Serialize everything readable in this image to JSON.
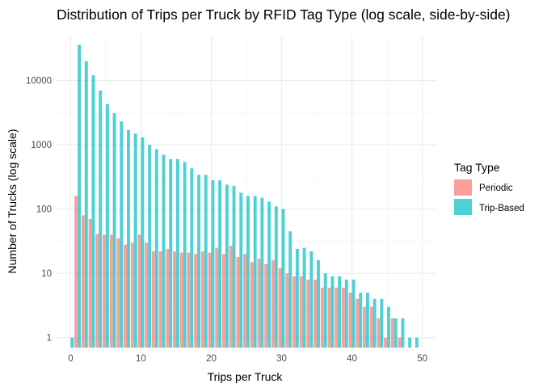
{
  "chart_data": {
    "type": "bar",
    "title": "Distribution of Trips per Truck by RFID Tag Type (log scale, side-by-side)",
    "xlabel": "Trips per Truck",
    "ylabel": "Number of Trucks (log scale)",
    "xlim": [
      -2,
      52
    ],
    "ylim": [
      0.7,
      50000
    ],
    "yscale": "log",
    "x_ticks": [
      0,
      10,
      20,
      30,
      40,
      50
    ],
    "x_tick_labels": [
      "0",
      "10",
      "20",
      "30",
      "40",
      "50"
    ],
    "y_ticks": [
      1,
      10,
      100,
      1000,
      10000
    ],
    "y_tick_labels": [
      "1",
      "10",
      "100",
      "1000",
      "10000"
    ],
    "grid": true,
    "legend": {
      "title": "Tag Type",
      "position": "right"
    },
    "series": [
      {
        "name": "Periodic",
        "color": "#F8766D",
        "x": [
          1,
          2,
          3,
          4,
          5,
          6,
          7,
          8,
          9,
          10,
          11,
          12,
          13,
          14,
          15,
          16,
          17,
          18,
          19,
          20,
          21,
          22,
          23,
          24,
          25,
          26,
          27,
          28,
          29,
          30,
          31,
          32,
          33,
          34,
          35,
          36,
          37,
          38,
          39,
          40,
          41,
          42,
          43,
          44,
          45,
          46,
          47
        ],
        "values": [
          160,
          80,
          70,
          41,
          40,
          40,
          35,
          28,
          30,
          40,
          30,
          22,
          22,
          24,
          22,
          21,
          21,
          20,
          22,
          21,
          25,
          20,
          27,
          18,
          20,
          15,
          17,
          14,
          16,
          12,
          10,
          9,
          9,
          8,
          8,
          6,
          6,
          6,
          6,
          5,
          4,
          3,
          3,
          2,
          1,
          2,
          1
        ]
      },
      {
        "name": "Trip-Based",
        "color": "#00BFC4",
        "x": [
          0,
          1,
          2,
          3,
          4,
          5,
          6,
          7,
          8,
          9,
          10,
          11,
          12,
          13,
          14,
          15,
          16,
          17,
          18,
          19,
          20,
          21,
          22,
          23,
          24,
          25,
          26,
          27,
          28,
          29,
          30,
          31,
          32,
          33,
          34,
          35,
          36,
          37,
          38,
          39,
          40,
          41,
          42,
          43,
          44,
          45,
          46,
          47,
          48,
          49
        ],
        "values": [
          1,
          36000,
          20000,
          12000,
          7000,
          4300,
          3100,
          2300,
          1700,
          1500,
          1300,
          1000,
          850,
          700,
          600,
          600,
          540,
          430,
          340,
          340,
          280,
          280,
          240,
          230,
          180,
          160,
          160,
          150,
          130,
          110,
          100,
          45,
          24,
          25,
          22,
          16,
          10,
          9,
          9,
          8,
          8,
          5,
          5,
          4,
          4,
          3,
          2,
          2,
          1,
          1
        ]
      }
    ]
  }
}
